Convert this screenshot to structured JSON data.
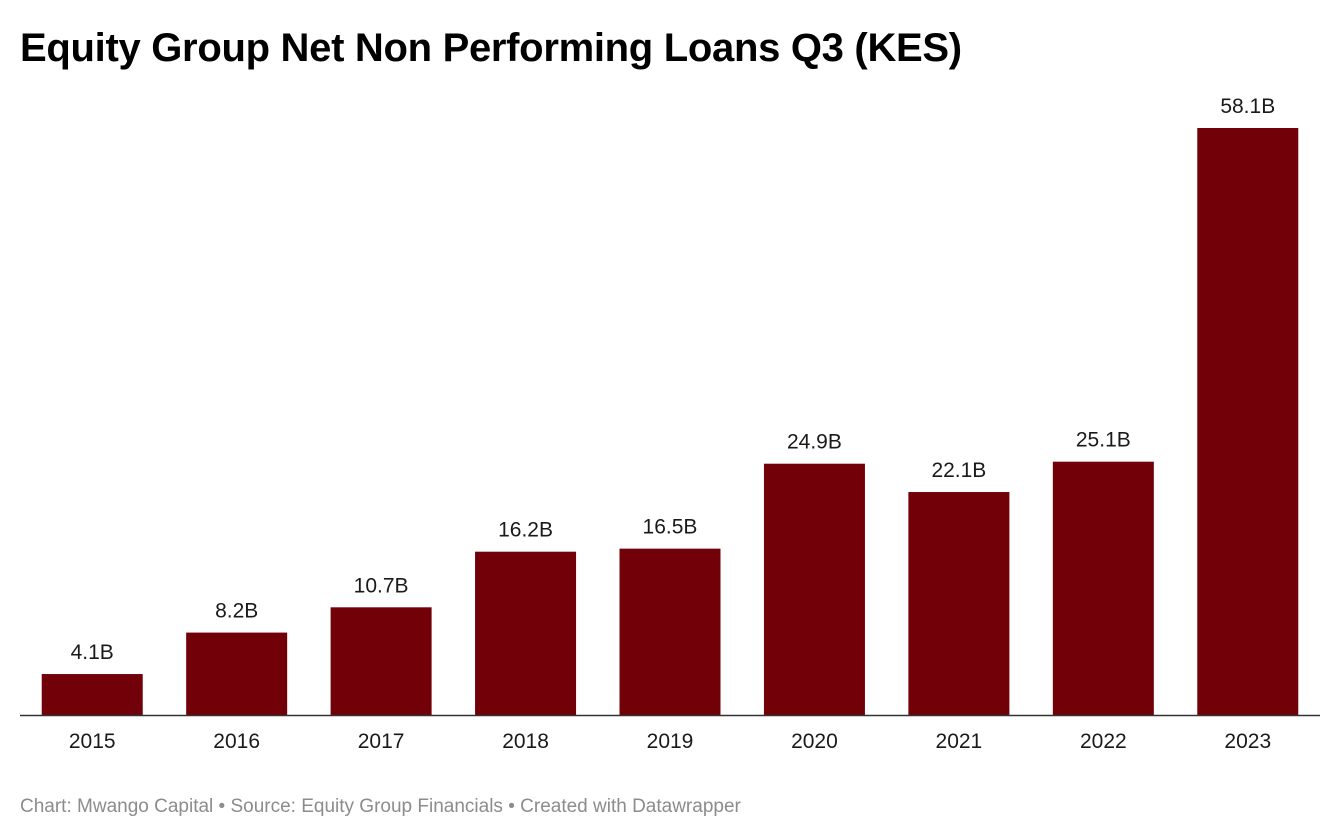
{
  "chart_data": {
    "type": "bar",
    "title": "Equity Group Net Non Performing Loans Q3 (KES)",
    "categories": [
      "2015",
      "2016",
      "2017",
      "2018",
      "2019",
      "2020",
      "2021",
      "2022",
      "2023"
    ],
    "values": [
      4.1,
      8.2,
      10.7,
      16.2,
      16.5,
      24.9,
      22.1,
      25.1,
      58.1
    ],
    "data_labels": [
      "4.1B",
      "8.2B",
      "10.7B",
      "16.2B",
      "16.5B",
      "24.9B",
      "22.1B",
      "25.1B",
      "58.1B"
    ],
    "unit": "B",
    "xlabel": "",
    "ylabel": "",
    "ylim": [
      0,
      58.1
    ],
    "grid": false,
    "bar_color": "#720008",
    "axis_color": "#333333"
  },
  "footer": {
    "credit": "Chart: Mwango Capital • Source: Equity Group Financials • Created with Datawrapper"
  }
}
